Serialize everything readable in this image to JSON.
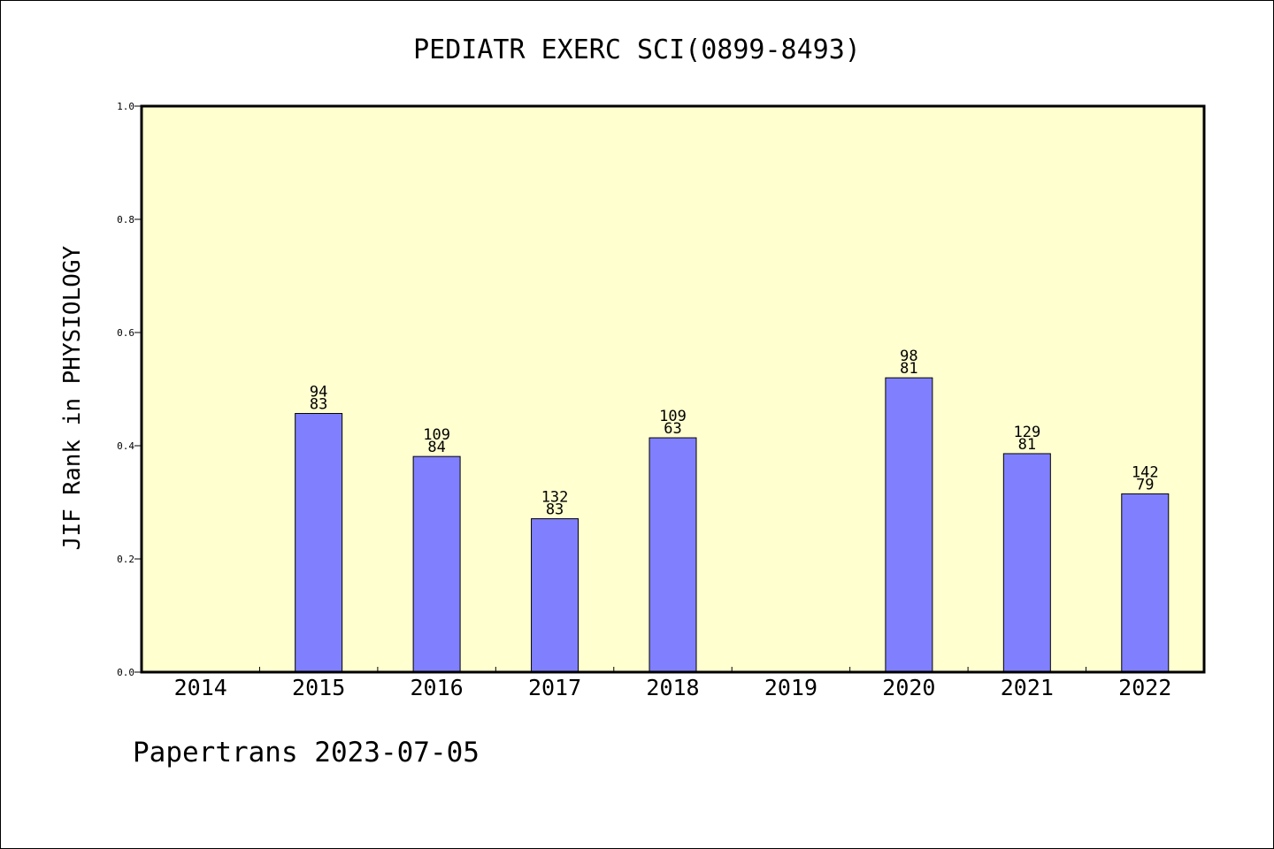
{
  "chart_data": {
    "type": "bar",
    "title": "PEDIATR EXERC SCI(0899-8493)",
    "xlabel": "",
    "ylabel": "JIF Rank in PHYSIOLOGY",
    "ylim": [
      0,
      1.0
    ],
    "yticks": [
      "0.0",
      "0.2",
      "0.4",
      "0.6",
      "0.8",
      "1.0"
    ],
    "grid": false,
    "categories": [
      "2014",
      "2015",
      "2016",
      "2017",
      "2018",
      "2019",
      "2020",
      "2021",
      "2022"
    ],
    "values": [
      null,
      0.457,
      0.381,
      0.271,
      0.414,
      null,
      0.52,
      0.386,
      0.315
    ],
    "labels_top": [
      "",
      "94",
      "109",
      "132",
      "109",
      "",
      "98",
      "129",
      "142"
    ],
    "labels_bottom": [
      "",
      "83",
      "84",
      "83",
      "63",
      "",
      "81",
      "81",
      "79"
    ],
    "colors": {
      "plot_bg": "#ffffd0",
      "bar": "#8080ff",
      "axis": "#000000"
    }
  },
  "footer": {
    "text": "Papertrans 2023-07-05"
  }
}
